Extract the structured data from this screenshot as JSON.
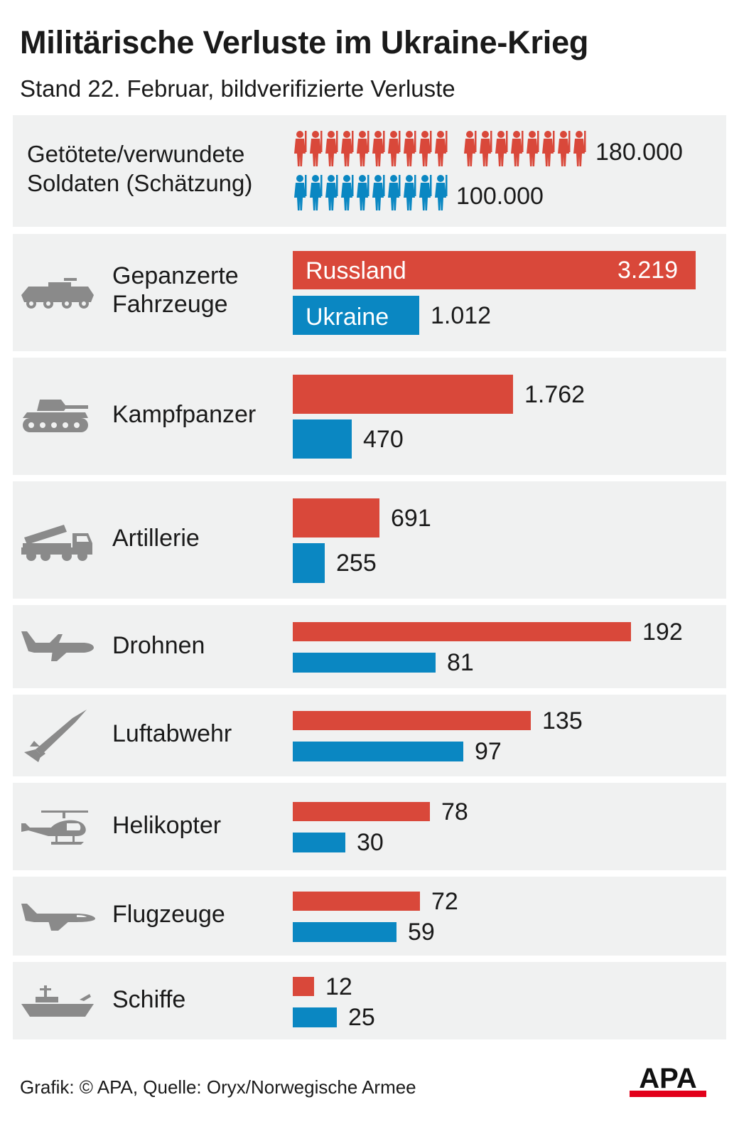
{
  "header": {
    "title": "Militärische Verluste im Ukraine-Krieg",
    "subtitle": "Stand 22. Februar, bildverifizierte Verluste"
  },
  "soldiers": {
    "label_line1": "Getötete/verwundete",
    "label_line2": "Soldaten (Schätzung)",
    "russia_value": "180.000",
    "ukraine_value": "100.000",
    "russia_icon_count": 18,
    "ukraine_icon_count": 10,
    "colors": {
      "russia": "#d9483a",
      "ukraine": "#0a87c2"
    }
  },
  "chart_data": {
    "type": "bar",
    "title": "Militärische Verluste im Ukraine-Krieg",
    "subtitle": "Stand 22. Februar, bildverifizierte Verluste",
    "categories": [
      "Gepanzerte Fahrzeuge",
      "Kampfpanzer",
      "Artillerie",
      "Drohnen",
      "Luftabwehr",
      "Helikopter",
      "Flugzeuge",
      "Schiffe"
    ],
    "series": [
      {
        "name": "Russland",
        "color": "#d9483a",
        "values": [
          3219,
          1762,
          691,
          192,
          135,
          78,
          72,
          12
        ],
        "labels": [
          "3.219",
          "1.762",
          "691",
          "192",
          "135",
          "78",
          "72",
          "12"
        ]
      },
      {
        "name": "Ukraine",
        "color": "#0a87c2",
        "values": [
          1012,
          470,
          255,
          81,
          97,
          30,
          59,
          25
        ],
        "labels": [
          "1.012",
          "470",
          "255",
          "81",
          "97",
          "30",
          "59",
          "25"
        ]
      }
    ],
    "groups": [
      {
        "categories": [
          "Gepanzerte Fahrzeuge",
          "Kampfpanzer",
          "Artillerie"
        ],
        "max": 3219
      },
      {
        "categories": [
          "Drohnen",
          "Luftabwehr",
          "Helikopter",
          "Flugzeuge",
          "Schiffe"
        ],
        "max": 192
      }
    ]
  },
  "rows": [
    {
      "label1": "Gepanzerte",
      "label2": "Fahrzeuge",
      "icon": "armored-vehicle-icon"
    },
    {
      "label1": "Kampfpanzer",
      "icon": "tank-icon"
    },
    {
      "label1": "Artillerie",
      "icon": "rocket-launcher-icon"
    },
    {
      "label1": "Drohnen",
      "icon": "drone-icon"
    },
    {
      "label1": "Luftabwehr",
      "icon": "missile-icon"
    },
    {
      "label1": "Helikopter",
      "icon": "helicopter-icon"
    },
    {
      "label1": "Flugzeuge",
      "icon": "airplane-icon"
    },
    {
      "label1": "Schiffe",
      "icon": "ship-icon"
    }
  ],
  "legend": {
    "russia": "Russland",
    "ukraine": "Ukraine"
  },
  "footer": {
    "credit": "Grafik: © APA, Quelle: Oryx/Norwegische Armee",
    "logo": "APA"
  }
}
